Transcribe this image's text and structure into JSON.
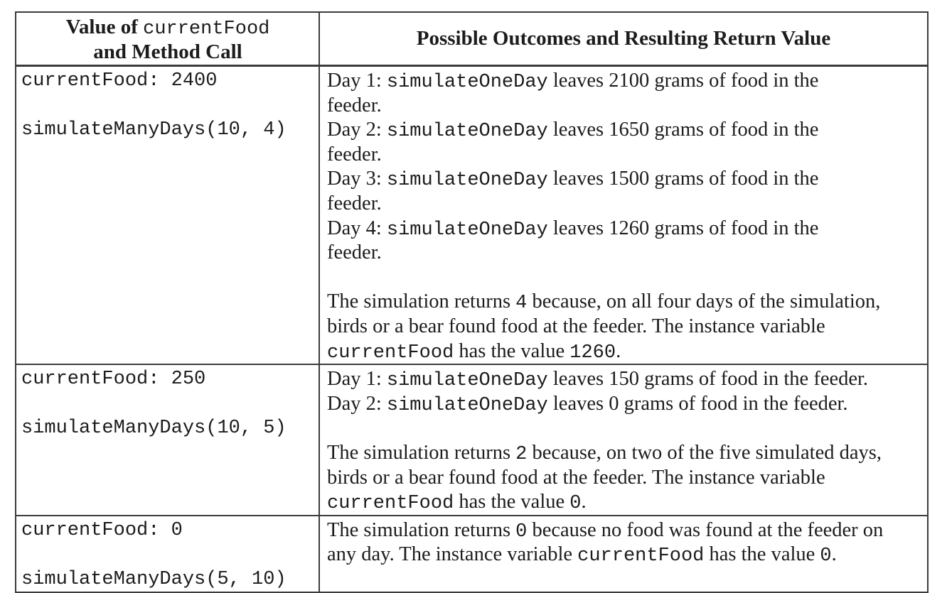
{
  "colors": {
    "text": "#1c1c1c",
    "border": "#3b3b3b",
    "background": "#ffffff"
  },
  "table": {
    "header": {
      "col1_lines": [
        [
          {
            "f": "sb",
            "t": "Value of "
          },
          {
            "f": "m",
            "t": "currentFood"
          }
        ],
        [
          {
            "f": "sb",
            "t": "and Method Call"
          }
        ]
      ],
      "col2": "Possible Outcomes and Resulting Return Value"
    },
    "rows": [
      {
        "left": [
          [
            {
              "f": "m",
              "t": "currentFood: 2400"
            }
          ],
          [],
          [
            {
              "f": "m",
              "t": "simulateManyDays(10, 4)"
            }
          ]
        ],
        "right": [
          [
            {
              "f": "s",
              "t": "Day 1: "
            },
            {
              "f": "m",
              "t": "simulateOneDay"
            },
            {
              "f": "s",
              "t": " leaves 2100 grams of food in the"
            }
          ],
          [
            {
              "f": "s",
              "t": "feeder."
            }
          ],
          [
            {
              "f": "s",
              "t": "Day 2: "
            },
            {
              "f": "m",
              "t": "simulateOneDay"
            },
            {
              "f": "s",
              "t": " leaves 1650 grams of food in the"
            }
          ],
          [
            {
              "f": "s",
              "t": "feeder."
            }
          ],
          [
            {
              "f": "s",
              "t": "Day 3: "
            },
            {
              "f": "m",
              "t": "simulateOneDay"
            },
            {
              "f": "s",
              "t": " leaves 1500 grams of food in the"
            }
          ],
          [
            {
              "f": "s",
              "t": "feeder."
            }
          ],
          [
            {
              "f": "s",
              "t": "Day 4: "
            },
            {
              "f": "m",
              "t": "simulateOneDay"
            },
            {
              "f": "s",
              "t": " leaves 1260 grams of food in the"
            }
          ],
          [
            {
              "f": "s",
              "t": "feeder."
            }
          ],
          [],
          [
            {
              "f": "s",
              "t": "The simulation returns "
            },
            {
              "f": "m",
              "t": "4"
            },
            {
              "f": "s",
              "t": " because, on all four days of the simulation,"
            }
          ],
          [
            {
              "f": "s",
              "t": "birds or a bear found food at the feeder. The instance variable"
            }
          ],
          [
            {
              "f": "m",
              "t": "currentFood"
            },
            {
              "f": "s",
              "t": " has the value "
            },
            {
              "f": "m",
              "t": "1260"
            },
            {
              "f": "s",
              "t": "."
            }
          ]
        ]
      },
      {
        "left": [
          [
            {
              "f": "m",
              "t": "currentFood: 250"
            }
          ],
          [],
          [
            {
              "f": "m",
              "t": "simulateManyDays(10, 5)"
            }
          ]
        ],
        "right": [
          [
            {
              "f": "s",
              "t": "Day 1: "
            },
            {
              "f": "m",
              "t": "simulateOneDay"
            },
            {
              "f": "s",
              "t": " leaves 150 grams of food in the feeder."
            }
          ],
          [
            {
              "f": "s",
              "t": "Day 2: "
            },
            {
              "f": "m",
              "t": "simulateOneDay"
            },
            {
              "f": "s",
              "t": " leaves 0 grams of food in the feeder."
            }
          ],
          [],
          [
            {
              "f": "s",
              "t": "The simulation returns "
            },
            {
              "f": "m",
              "t": "2"
            },
            {
              "f": "s",
              "t": " because, on two of the five simulated days,"
            }
          ],
          [
            {
              "f": "s",
              "t": "birds or a bear found food at the feeder. The instance variable"
            }
          ],
          [
            {
              "f": "m",
              "t": "currentFood"
            },
            {
              "f": "s",
              "t": " has the value "
            },
            {
              "f": "m",
              "t": "0"
            },
            {
              "f": "s",
              "t": "."
            }
          ]
        ]
      },
      {
        "left": [
          [
            {
              "f": "m",
              "t": "currentFood: 0"
            }
          ],
          [],
          [
            {
              "f": "m",
              "t": "simulateManyDays(5, 10)"
            }
          ]
        ],
        "right": [
          [
            {
              "f": "s",
              "t": "The simulation returns "
            },
            {
              "f": "m",
              "t": "0"
            },
            {
              "f": "s",
              "t": " because no food was found at the feeder on"
            }
          ],
          [
            {
              "f": "s",
              "t": "any day. The instance variable "
            },
            {
              "f": "m",
              "t": "currentFood"
            },
            {
              "f": "s",
              "t": " has the value "
            },
            {
              "f": "m",
              "t": "0"
            },
            {
              "f": "s",
              "t": "."
            }
          ]
        ]
      }
    ]
  }
}
